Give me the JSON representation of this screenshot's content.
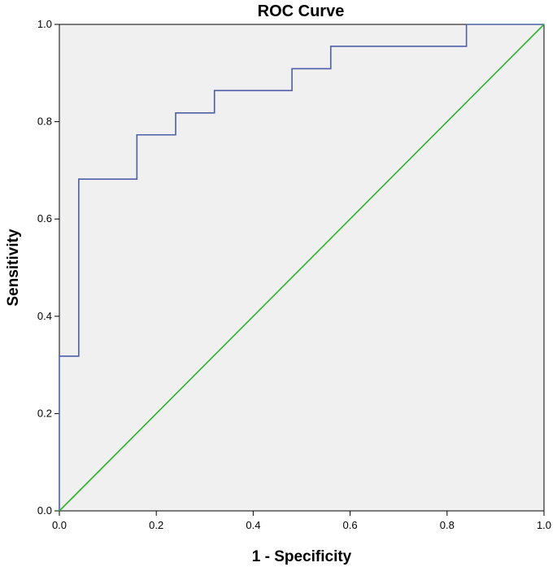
{
  "chart_data": {
    "type": "line",
    "title": "ROC Curve",
    "xlabel": "1 - Specificity",
    "ylabel": "Sensitivity",
    "xlim": [
      0.0,
      1.0
    ],
    "ylim": [
      0.0,
      1.0
    ],
    "xticks": [
      "0.0",
      "0.2",
      "0.4",
      "0.6",
      "0.8",
      "1.0"
    ],
    "yticks": [
      "0.0",
      "0.2",
      "0.4",
      "0.6",
      "0.8",
      "1.0"
    ],
    "grid": false,
    "background_color": "#f0f0f0",
    "series": [
      {
        "color": "#4a5fa8",
        "step": true,
        "x": [
          0.0,
          0.0,
          0.04,
          0.04,
          0.16,
          0.16,
          0.24,
          0.24,
          0.32,
          0.32,
          0.48,
          0.48,
          0.56,
          0.56,
          0.84,
          0.84,
          1.0
        ],
        "y": [
          0.0,
          0.318,
          0.318,
          0.682,
          0.682,
          0.773,
          0.773,
          0.818,
          0.818,
          0.864,
          0.864,
          0.909,
          0.909,
          0.955,
          0.955,
          1.0,
          1.0
        ]
      },
      {
        "color": "#2ab52a",
        "step": false,
        "x": [
          0.0,
          1.0
        ],
        "y": [
          0.0,
          1.0
        ]
      }
    ]
  }
}
